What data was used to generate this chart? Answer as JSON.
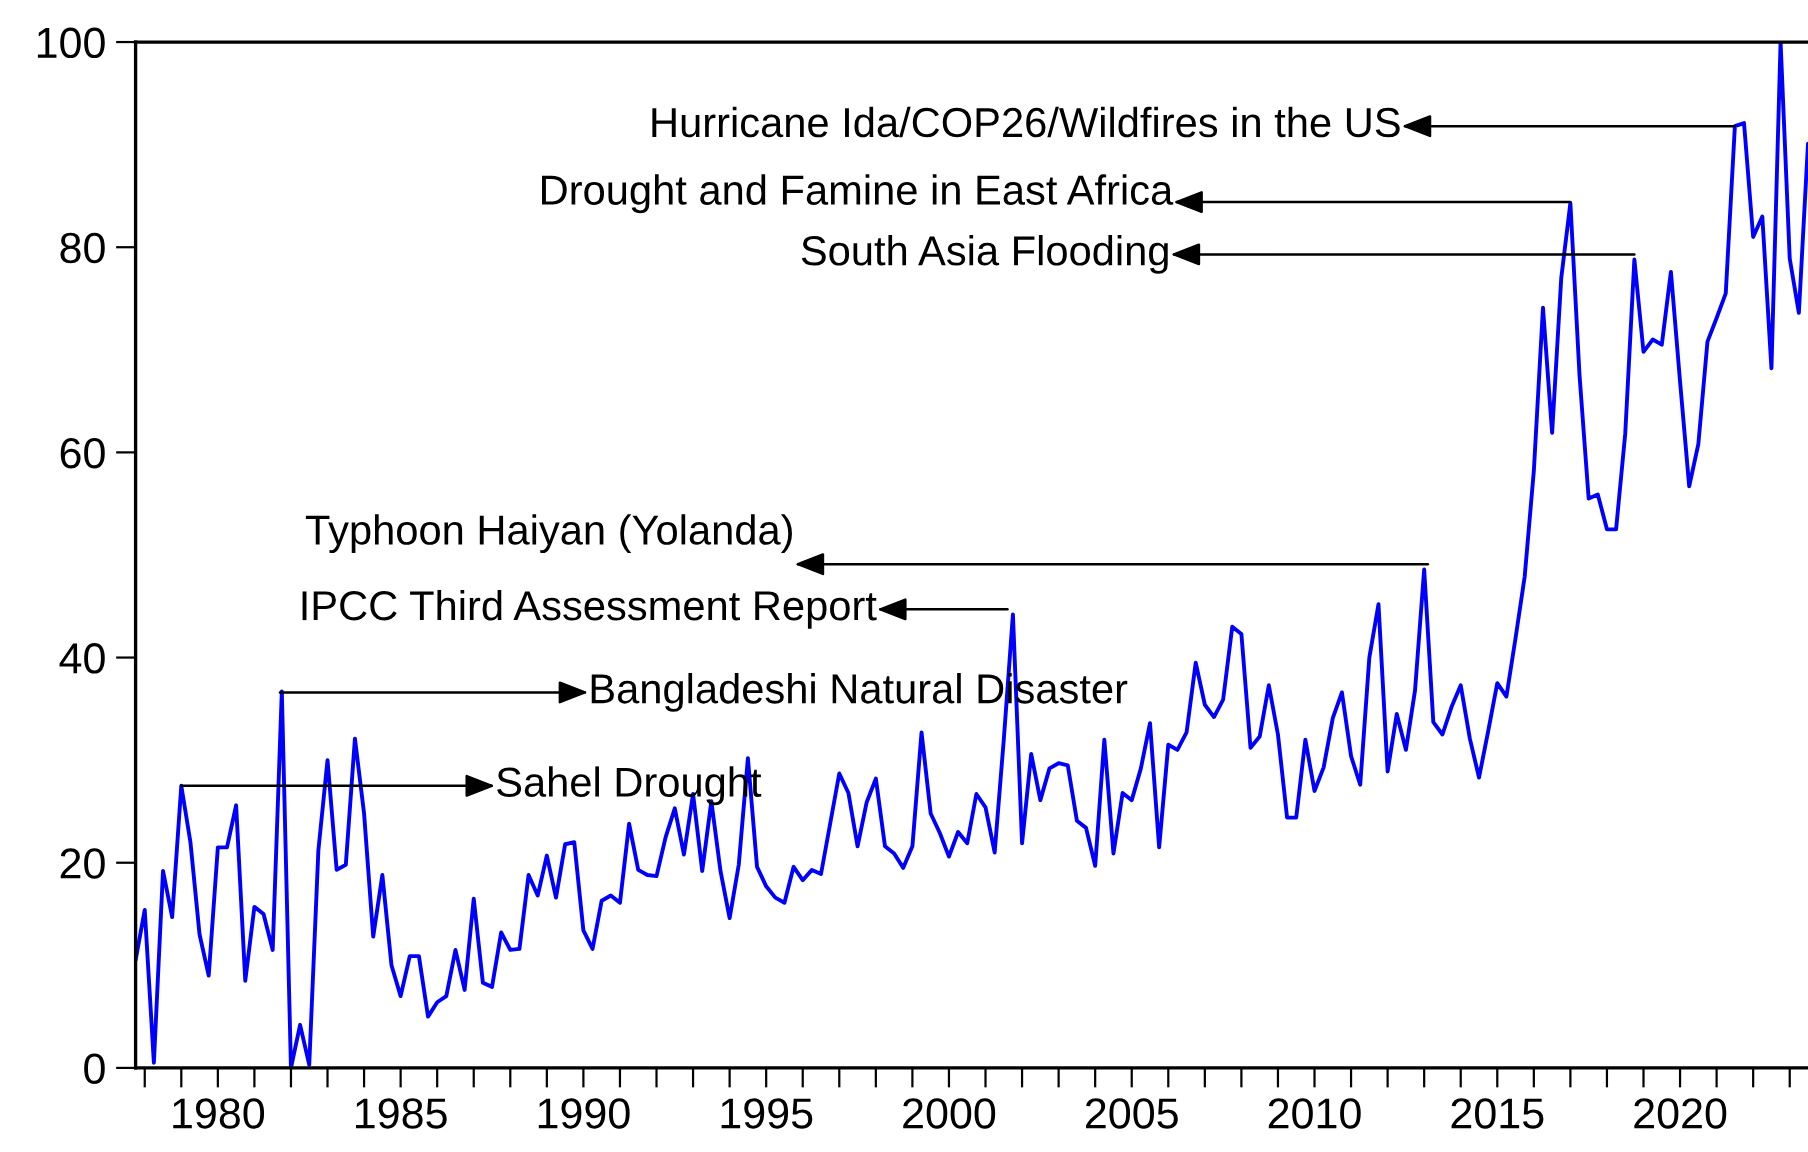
{
  "chart_data": {
    "type": "line",
    "x": [
      1977.75,
      1978,
      1978.25,
      1978.5,
      1978.75,
      1979,
      1979.25,
      1979.5,
      1979.75,
      1980,
      1980.25,
      1980.5,
      1980.75,
      1981,
      1981.25,
      1981.5,
      1981.75,
      1982,
      1982.25,
      1982.5,
      1982.75,
      1983,
      1983.25,
      1983.5,
      1983.75,
      1984,
      1984.25,
      1984.5,
      1984.75,
      1985,
      1985.25,
      1985.5,
      1985.75,
      1986,
      1986.25,
      1986.5,
      1986.75,
      1987,
      1987.25,
      1987.5,
      1987.75,
      1988,
      1988.25,
      1988.5,
      1988.75,
      1989,
      1989.25,
      1989.5,
      1989.75,
      1990,
      1990.25,
      1990.5,
      1990.75,
      1991,
      1991.25,
      1991.5,
      1991.75,
      1992,
      1992.25,
      1992.5,
      1992.75,
      1993,
      1993.25,
      1993.5,
      1993.75,
      1994,
      1994.25,
      1994.5,
      1994.75,
      1995,
      1995.25,
      1995.5,
      1995.75,
      1996,
      1996.25,
      1996.5,
      1996.75,
      1997,
      1997.25,
      1997.5,
      1997.75,
      1998,
      1998.25,
      1998.5,
      1998.75,
      1999,
      1999.25,
      1999.5,
      1999.75,
      2000,
      2000.25,
      2000.5,
      2000.75,
      2001,
      2001.25,
      2001.5,
      2001.75,
      2002,
      2002.25,
      2002.5,
      2002.75,
      2003,
      2003.25,
      2003.5,
      2003.75,
      2004,
      2004.25,
      2004.5,
      2004.75,
      2005,
      2005.25,
      2005.5,
      2005.75,
      2006,
      2006.25,
      2006.5,
      2006.75,
      2007,
      2007.25,
      2007.5,
      2007.75,
      2008,
      2008.25,
      2008.5,
      2008.75,
      2009,
      2009.25,
      2009.5,
      2009.75,
      2010,
      2010.25,
      2010.5,
      2010.75,
      2011,
      2011.25,
      2011.5,
      2011.75,
      2012,
      2012.25,
      2012.5,
      2012.75,
      2013,
      2013.25,
      2013.5,
      2013.75,
      2014,
      2014.25,
      2014.5,
      2014.75,
      2015,
      2015.25,
      2015.5,
      2015.75,
      2016,
      2016.25,
      2016.5,
      2016.75,
      2017,
      2017.25,
      2017.5,
      2017.75,
      2018,
      2018.25,
      2018.5,
      2018.75,
      2019,
      2019.25,
      2019.5,
      2019.75,
      2020,
      2020.25,
      2020.5,
      2020.75,
      2021,
      2021.25,
      2021.5,
      2021.75,
      2022,
      2022.25,
      2022.5,
      2022.75,
      2023,
      2023.25,
      2023.5
    ],
    "series": [
      {
        "color": "#0000ff",
        "values": [
          10.5,
          15.4,
          0.5,
          19.2,
          14.7,
          27.5,
          22,
          13,
          9,
          21.5,
          21.5,
          25.6,
          8.5,
          15.7,
          15,
          11.5,
          36.7,
          0,
          4.2,
          0.3,
          21.2,
          30,
          19.3,
          19.8,
          32.1,
          24.8,
          12.8,
          18.8,
          10,
          7,
          10.9,
          10.9,
          5,
          6.4,
          7,
          11.5,
          7.6,
          16.5,
          8.3,
          7.9,
          13.2,
          11.5,
          11.6,
          18.8,
          16.8,
          20.7,
          16.6,
          21.8,
          22,
          13.4,
          11.6,
          16.3,
          16.8,
          16.1,
          23.8,
          19.3,
          18.8,
          18.7,
          22.5,
          25.3,
          20.8,
          26.7,
          19.2,
          26,
          19.2,
          14.6,
          19.8,
          30.2,
          19.6,
          17.7,
          16.6,
          16.1,
          19.6,
          18.3,
          19.3,
          18.9,
          23.8,
          28.7,
          26.8,
          21.6,
          25.9,
          28.2,
          21.6,
          20.9,
          19.5,
          21.6,
          32.7,
          24.8,
          22.9,
          20.6,
          23,
          21.9,
          26.7,
          25.4,
          21,
          32,
          44.2,
          21.9,
          30.6,
          26.1,
          29.2,
          29.7,
          29.5,
          24.1,
          23.4,
          19.7,
          32,
          20.9,
          26.8,
          26.1,
          29.2,
          33.6,
          21.5,
          31.5,
          31,
          32.7,
          39.5,
          35.4,
          34.2,
          35.9,
          43,
          42.3,
          31.2,
          32.3,
          37.3,
          32.5,
          24.4,
          24.4,
          32,
          27,
          29.3,
          34.1,
          36.6,
          30.4,
          27.6,
          40,
          45.2,
          28.9,
          34.5,
          31,
          36.8,
          48.6,
          33.7,
          32.5,
          35.2,
          37.3,
          32.1,
          28.3,
          32.8,
          37.5,
          36.2,
          41.9,
          47.9,
          58.2,
          74.1,
          61.9,
          77,
          84.3,
          67.5,
          55.5,
          55.9,
          52.5,
          52.5,
          61.8,
          78.8,
          69.8,
          71,
          70.5,
          77.6,
          66.9,
          56.7,
          60.8,
          70.8,
          73.1,
          75.5,
          91.8,
          92.1,
          81,
          83,
          68.2,
          100,
          78.9,
          73.6,
          90.1
        ]
      }
    ],
    "xlim": [
      1977.75,
      2023.5
    ],
    "xticks": [
      {
        "value": 1978,
        "label": null
      },
      {
        "value": 1979,
        "label": null
      },
      1980,
      {
        "value": 1981,
        "label": null
      },
      {
        "value": 1982,
        "label": null
      },
      {
        "value": 1983,
        "label": null
      },
      {
        "value": 1984,
        "label": null
      },
      1985,
      {
        "value": 1986,
        "label": null
      },
      {
        "value": 1987,
        "label": null
      },
      {
        "value": 1988,
        "label": null
      },
      {
        "value": 1989,
        "label": null
      },
      1990,
      {
        "value": 1991,
        "label": null
      },
      {
        "value": 1992,
        "label": null
      },
      {
        "value": 1993,
        "label": null
      },
      {
        "value": 1994,
        "label": null
      },
      1995,
      {
        "value": 1996,
        "label": null
      },
      {
        "value": 1997,
        "label": null
      },
      {
        "value": 1998,
        "label": null
      },
      {
        "value": 1999,
        "label": null
      },
      2000,
      {
        "value": 2001,
        "label": null
      },
      {
        "value": 2002,
        "label": null
      },
      {
        "value": 2003,
        "label": null
      },
      {
        "value": 2004,
        "label": null
      },
      2005,
      {
        "value": 2006,
        "label": null
      },
      {
        "value": 2007,
        "label": null
      },
      {
        "value": 2008,
        "label": null
      },
      {
        "value": 2009,
        "label": null
      },
      2010,
      {
        "value": 2011,
        "label": null
      },
      {
        "value": 2012,
        "label": null
      },
      {
        "value": 2013,
        "label": null
      },
      {
        "value": 2014,
        "label": null
      },
      2015,
      {
        "value": 2016,
        "label": null
      },
      {
        "value": 2017,
        "label": null
      },
      {
        "value": 2018,
        "label": null
      },
      {
        "value": 2019,
        "label": null
      },
      2020,
      {
        "value": 2021,
        "label": null
      },
      {
        "value": 2022,
        "label": null
      },
      {
        "value": 2023,
        "label": null
      }
    ],
    "ylim": [
      0,
      100
    ],
    "yticks": [
      0,
      20,
      40,
      60,
      80,
      100
    ],
    "annotations": [
      {
        "text": "Sahel Drought",
        "x": 1979.0,
        "y": 27.5
      },
      {
        "text": "Bangladeshi Natural Disaster",
        "x": 1981.7,
        "y": 36.6
      },
      {
        "text": "IPCC Third Assessment Report",
        "x": 2001.6,
        "y": 44.7
      },
      {
        "text": "Typhoon Haiyan (Yolanda)",
        "x": 2013.1,
        "y": 49.1
      },
      {
        "text": "South Asia Flooding",
        "x": 2018.75,
        "y": 79.3
      },
      {
        "text": "Drought and Famine in East Africa",
        "x": 2017.0,
        "y": 84.4
      },
      {
        "text": "Hurricane Ida/COP26/Wildfires in the US",
        "x": 2021.5,
        "y": 91.8
      }
    ]
  }
}
